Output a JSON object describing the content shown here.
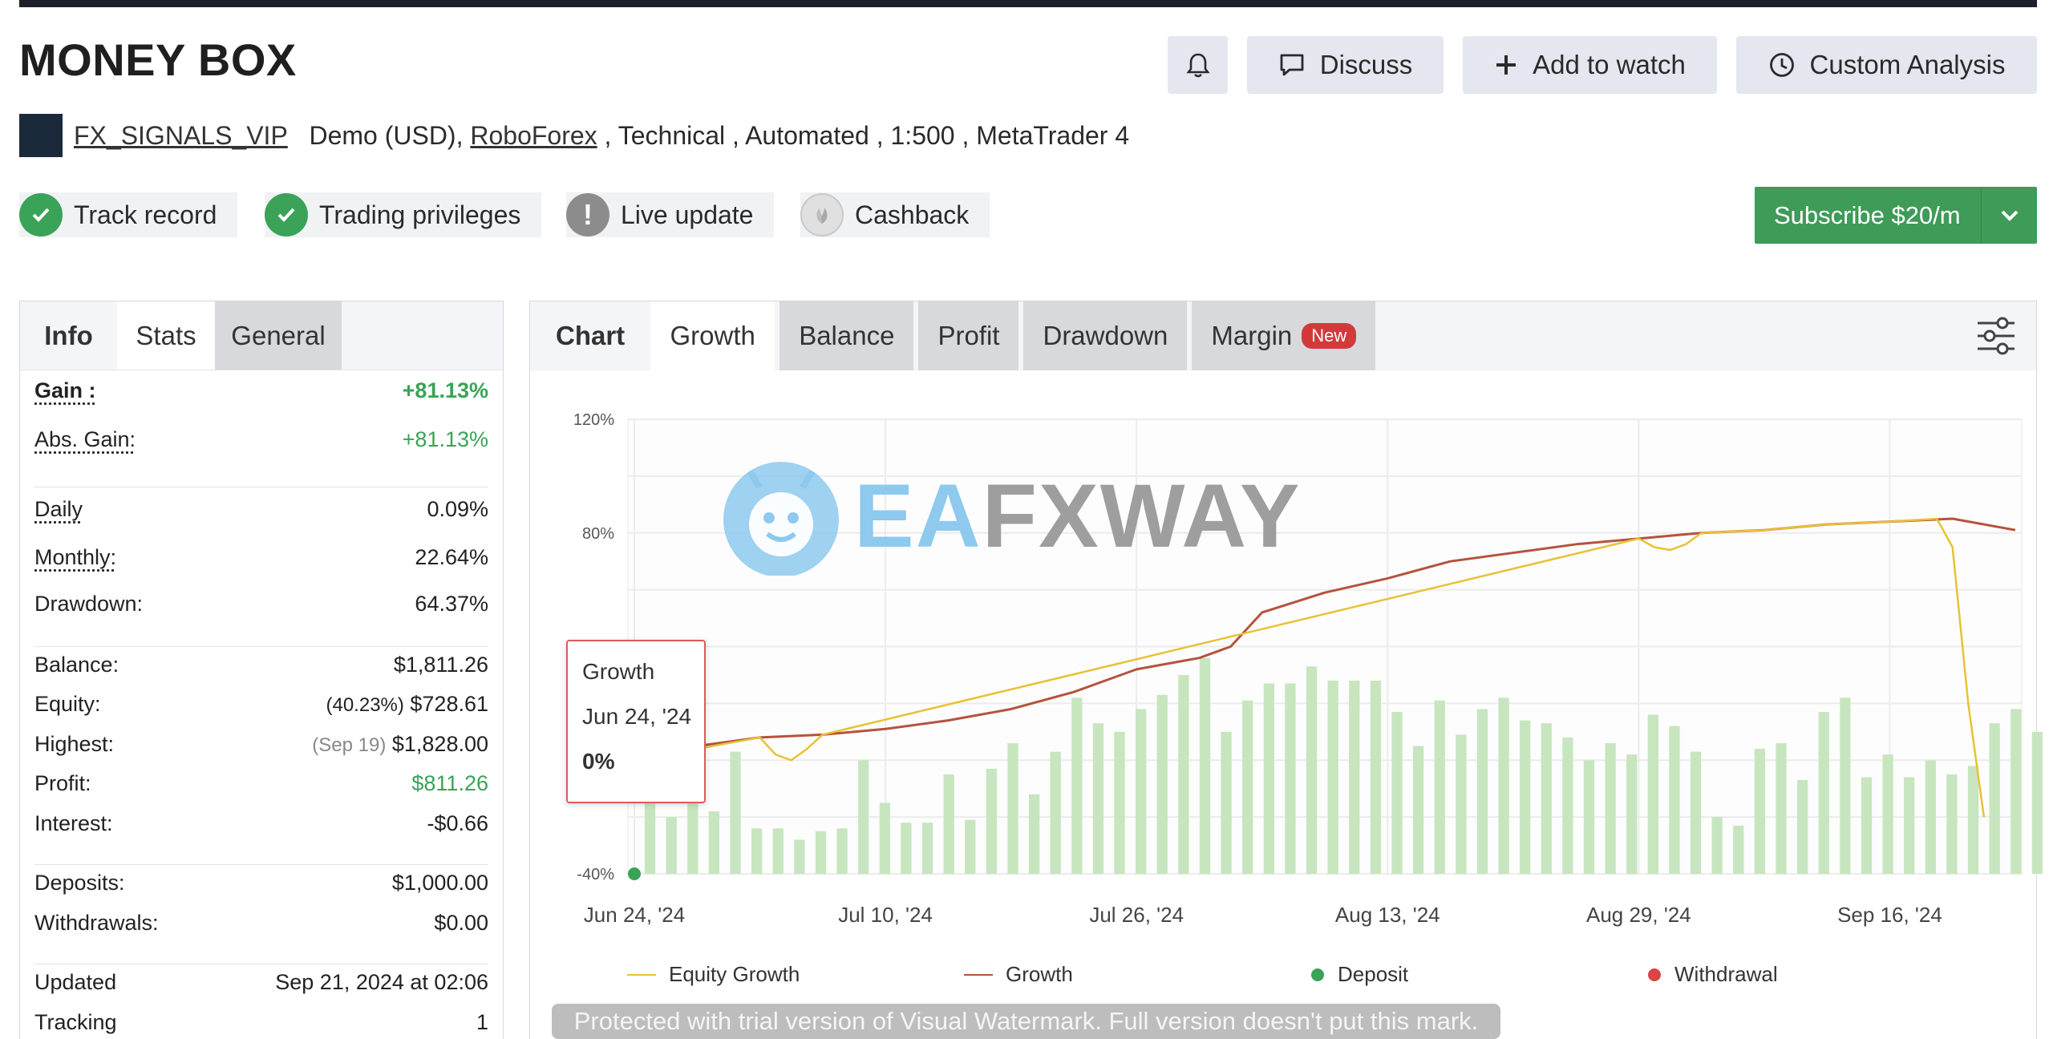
{
  "page": {
    "title": "MONEY BOX",
    "header_buttons": {
      "discuss": "Discuss",
      "watch": "Add to watch",
      "analysis": "Custom Analysis"
    },
    "meta": {
      "owner": "FX_SIGNALS_VIP",
      "account_type": "Demo (USD), ",
      "broker": "RoboForex",
      "tags": " , Technical , Automated , 1:500 , MetaTrader 4"
    },
    "badges": {
      "track_record": "Track record",
      "trading_privileges": "Trading privileges",
      "live_update": "Live update",
      "cashback": "Cashback"
    },
    "subscribe_label": "Subscribe $20/m"
  },
  "left_panel": {
    "tabs": [
      "Info",
      "Stats",
      "General"
    ],
    "stats": {
      "gain_label": "Gain :",
      "gain_value": "+81.13%",
      "abs_gain_label": "Abs. Gain:",
      "abs_gain_value": "+81.13%",
      "daily_label": "Daily",
      "daily_value": "0.09%",
      "monthly_label": "Monthly:",
      "monthly_value": "22.64%",
      "drawdown_label": "Drawdown:",
      "drawdown_value": "64.37%",
      "balance_label": "Balance:",
      "balance_value": "$1,811.26",
      "equity_label": "Equity:",
      "equity_pct": "(40.23%)",
      "equity_value": "$728.61",
      "highest_label": "Highest:",
      "highest_date": "(Sep 19)",
      "highest_value": "$1,828.00",
      "profit_label": "Profit:",
      "profit_value": "$811.26",
      "interest_label": "Interest:",
      "interest_value": "-$0.66",
      "deposits_label": "Deposits:",
      "deposits_value": "$1,000.00",
      "withdrawals_label": "Withdrawals:",
      "withdrawals_value": "$0.00",
      "updated_label": "Updated",
      "updated_value": "Sep 21, 2024 at 02:06",
      "tracking_label": "Tracking",
      "tracking_value": "1"
    }
  },
  "chart_panel": {
    "tabs": {
      "head": "Chart",
      "growth": "Growth",
      "balance": "Balance",
      "profit": "Profit",
      "drawdown": "Drawdown",
      "margin": "Margin",
      "new_badge": "New"
    },
    "tooltip": {
      "series": "Growth",
      "date": "Jun 24, '24",
      "value": "0%"
    },
    "legend": {
      "equity_growth": "Equity Growth",
      "growth": "Growth",
      "deposit": "Deposit",
      "withdrawal": "Withdrawal"
    },
    "watermark_logo": {
      "part1": "EA",
      "part2": "FXWAY"
    },
    "watermark_notice": "Protected with trial version of Visual Watermark. Full version doesn't put this mark."
  },
  "colors": {
    "accent_green": "#3aa357",
    "growth_line": "#b5533c",
    "equity_line": "#e8c236",
    "bars": "#c7e6bf",
    "deposit_dot": "#3aa357",
    "withdrawal_dot": "#d94545"
  },
  "chart_data": {
    "type": "line",
    "title": "",
    "xlabel": "",
    "ylabel": "",
    "ylim": [
      -40,
      120
    ],
    "ytick_labels": [
      "120%",
      "80%",
      "-40%"
    ],
    "ytick_values": [
      120,
      80,
      -40
    ],
    "xtick_labels": [
      "Jun 24, '24",
      "Jul 10, '24",
      "Jul 26, '24",
      "Aug 13, '24",
      "Aug 29, '24",
      "Sep 16, '24"
    ],
    "x_range_days": [
      0,
      88
    ],
    "xtick_days": [
      0,
      16,
      32,
      48,
      64,
      80
    ],
    "series": [
      {
        "name": "Growth",
        "x": [
          0,
          4,
          8,
          12,
          16,
          20,
          24,
          28,
          30,
          32,
          34,
          36,
          38,
          40,
          44,
          48,
          52,
          56,
          60,
          64,
          66,
          68,
          72,
          76,
          80,
          84,
          88
        ],
        "y": [
          0,
          5,
          8,
          9,
          11,
          14,
          18,
          24,
          28,
          32,
          34,
          36,
          40,
          52,
          59,
          64,
          70,
          73,
          76,
          78,
          79,
          80,
          81,
          83,
          84,
          85,
          81
        ],
        "color": "#b5533c"
      },
      {
        "name": "Equity Growth",
        "x": [
          0,
          8,
          9,
          10,
          11,
          12,
          64,
          65,
          66,
          67,
          68,
          72,
          76,
          80,
          83,
          84,
          85,
          86
        ],
        "y": [
          0,
          8,
          2,
          0,
          4,
          9,
          78,
          75,
          74,
          76,
          80,
          81,
          83,
          84,
          85,
          75,
          20,
          -20
        ],
        "color": "#e8c236"
      }
    ],
    "bars": {
      "x_start_day": 1,
      "x_step_days": 1.36,
      "values": [
        -2,
        -20,
        -8,
        -18,
        3,
        -24,
        -24,
        -28,
        -25,
        -24,
        0,
        -15,
        -22,
        -22,
        -5,
        -21,
        -3,
        6,
        -12,
        3,
        22,
        13,
        10,
        18,
        23,
        30,
        36,
        10,
        21,
        27,
        27,
        33,
        28,
        28,
        28,
        17,
        5,
        21,
        9,
        18,
        22,
        14,
        13,
        8,
        0,
        6,
        2,
        16,
        12,
        3,
        -20,
        -23,
        4,
        6,
        -7,
        17,
        22,
        -6,
        2,
        -6,
        0,
        -5,
        -2,
        13,
        18,
        10,
        11
      ]
    },
    "deposits": [
      {
        "x": 0,
        "y": -40
      }
    ],
    "legend_position": "bottom",
    "grid": true
  }
}
